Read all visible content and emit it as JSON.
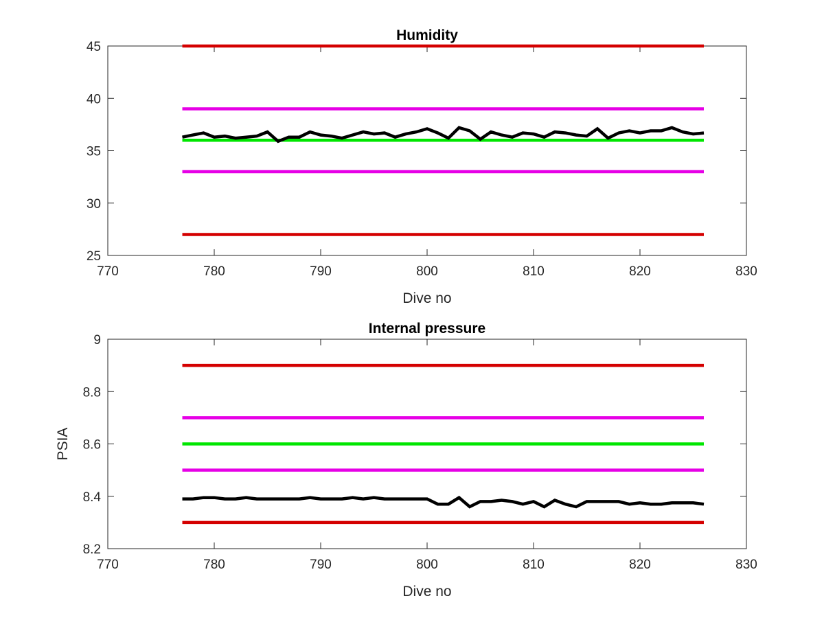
{
  "chart_data": [
    {
      "type": "line",
      "title": "Humidity",
      "xlabel": "Dive no",
      "ylabel": "",
      "xlim": [
        770,
        830
      ],
      "ylim": [
        25,
        45
      ],
      "xticks": [
        770,
        780,
        790,
        800,
        810,
        820,
        830
      ],
      "yticks": [
        25,
        30,
        35,
        40,
        45
      ],
      "grid": false,
      "series": [
        {
          "color": "#d40000",
          "x": [
            777,
            826
          ],
          "y": [
            45,
            45
          ]
        },
        {
          "color": "#e600e6",
          "x": [
            777,
            826
          ],
          "y": [
            39,
            39
          ]
        },
        {
          "color": "#00e600",
          "x": [
            777,
            826
          ],
          "y": [
            36,
            36
          ]
        },
        {
          "color": "#e600e6",
          "x": [
            777,
            826
          ],
          "y": [
            33,
            33
          ]
        },
        {
          "color": "#d40000",
          "x": [
            777,
            826
          ],
          "y": [
            27,
            27
          ]
        },
        {
          "color": "#000000",
          "x": [
            777,
            778,
            779,
            780,
            781,
            782,
            783,
            784,
            785,
            786,
            787,
            788,
            789,
            790,
            791,
            792,
            793,
            794,
            795,
            796,
            797,
            798,
            799,
            800,
            801,
            802,
            803,
            804,
            805,
            806,
            807,
            808,
            809,
            810,
            811,
            812,
            813,
            814,
            815,
            816,
            817,
            818,
            819,
            820,
            821,
            822,
            823,
            824,
            825,
            826
          ],
          "y": [
            36.3,
            36.5,
            36.7,
            36.3,
            36.4,
            36.2,
            36.3,
            36.4,
            36.8,
            35.9,
            36.3,
            36.3,
            36.8,
            36.5,
            36.4,
            36.2,
            36.5,
            36.8,
            36.6,
            36.7,
            36.3,
            36.6,
            36.8,
            37.1,
            36.7,
            36.2,
            37.2,
            36.9,
            36.1,
            36.8,
            36.5,
            36.3,
            36.7,
            36.6,
            36.3,
            36.8,
            36.7,
            36.5,
            36.4,
            37.1,
            36.2,
            36.7,
            36.9,
            36.7,
            36.9,
            36.9,
            37.2,
            36.8,
            36.6,
            36.7
          ]
        }
      ]
    },
    {
      "type": "line",
      "title": "Internal pressure",
      "xlabel": "Dive no",
      "ylabel": "PSIA",
      "xlim": [
        770,
        830
      ],
      "ylim": [
        8.2,
        9
      ],
      "xticks": [
        770,
        780,
        790,
        800,
        810,
        820,
        830
      ],
      "yticks": [
        8.2,
        8.4,
        8.6,
        8.8,
        9
      ],
      "grid": false,
      "series": [
        {
          "color": "#d40000",
          "x": [
            777,
            826
          ],
          "y": [
            8.9,
            8.9
          ]
        },
        {
          "color": "#e600e6",
          "x": [
            777,
            826
          ],
          "y": [
            8.7,
            8.7
          ]
        },
        {
          "color": "#00e600",
          "x": [
            777,
            826
          ],
          "y": [
            8.6,
            8.6
          ]
        },
        {
          "color": "#e600e6",
          "x": [
            777,
            826
          ],
          "y": [
            8.5,
            8.5
          ]
        },
        {
          "color": "#d40000",
          "x": [
            777,
            826
          ],
          "y": [
            8.3,
            8.3
          ]
        },
        {
          "color": "#000000",
          "x": [
            777,
            778,
            779,
            780,
            781,
            782,
            783,
            784,
            785,
            786,
            787,
            788,
            789,
            790,
            791,
            792,
            793,
            794,
            795,
            796,
            797,
            798,
            799,
            800,
            801,
            802,
            803,
            804,
            805,
            806,
            807,
            808,
            809,
            810,
            811,
            812,
            813,
            814,
            815,
            816,
            817,
            818,
            819,
            820,
            821,
            822,
            823,
            824,
            825,
            826
          ],
          "y": [
            8.39,
            8.39,
            8.395,
            8.395,
            8.39,
            8.39,
            8.395,
            8.39,
            8.39,
            8.39,
            8.39,
            8.39,
            8.395,
            8.39,
            8.39,
            8.39,
            8.395,
            8.39,
            8.395,
            8.39,
            8.39,
            8.39,
            8.39,
            8.39,
            8.37,
            8.37,
            8.395,
            8.36,
            8.38,
            8.38,
            8.385,
            8.38,
            8.37,
            8.38,
            8.36,
            8.385,
            8.37,
            8.36,
            8.38,
            8.38,
            8.38,
            8.38,
            8.37,
            8.375,
            8.37,
            8.37,
            8.375,
            8.375,
            8.375,
            8.37
          ]
        }
      ]
    }
  ]
}
